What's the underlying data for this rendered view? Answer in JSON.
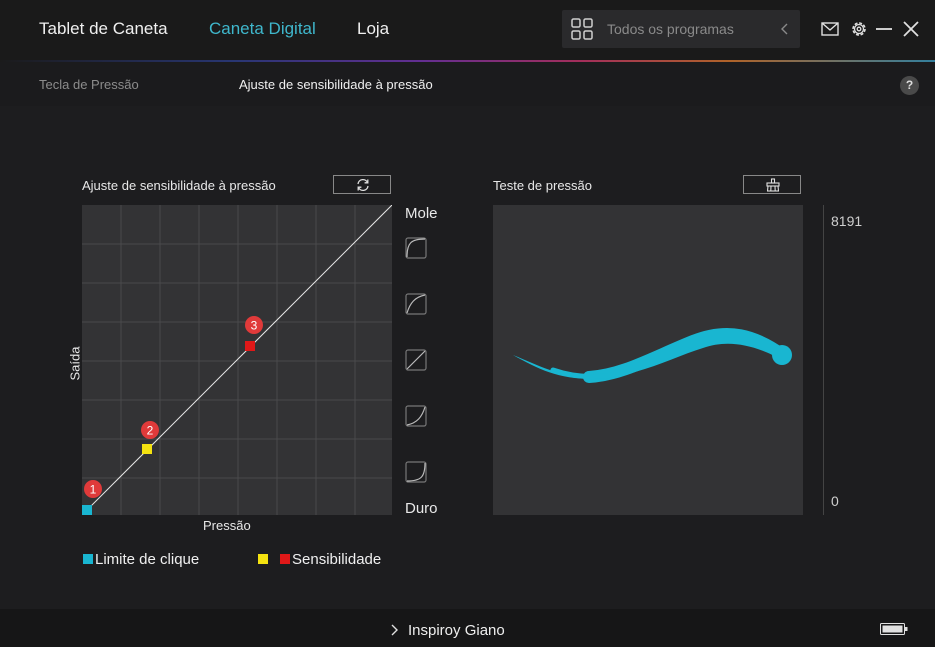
{
  "header": {
    "tabs": [
      {
        "label": "Tablet de Caneta",
        "active": false
      },
      {
        "label": "Caneta Digital",
        "active": true
      },
      {
        "label": "Loja",
        "active": false
      }
    ],
    "search_placeholder": "Todos os programas",
    "icons": [
      "grid-icon",
      "chevron-left-icon",
      "mail-icon",
      "gear-icon",
      "minimize-icon",
      "close-icon"
    ],
    "accent_color": "#3fb7cc"
  },
  "subnav": {
    "items": [
      {
        "label": "Tecla de Pressão",
        "active": false
      },
      {
        "label": "Ajuste de sensibilidade à pressão",
        "active": true
      }
    ],
    "help": "?"
  },
  "sensitivity": {
    "title": "Ajuste de sensibilidade à pressão",
    "y_label": "Saída",
    "x_label": "Pressão",
    "top_label": "Mole",
    "bottom_label": "Duro",
    "points": [
      {
        "label": "1",
        "color": "#19b6d1"
      },
      {
        "label": "2",
        "color": "#f4e210"
      },
      {
        "label": "3",
        "color": "#e01818"
      }
    ]
  },
  "pressure_test": {
    "title": "Teste de pressão",
    "scale_max": "8191",
    "scale_min": "0",
    "stroke_color": "#19b6d1"
  },
  "legend": {
    "click_limit": "Limite de clique",
    "sensitivity": "Sensibilidade"
  },
  "footer": {
    "device": "Inspiroy Giano"
  }
}
